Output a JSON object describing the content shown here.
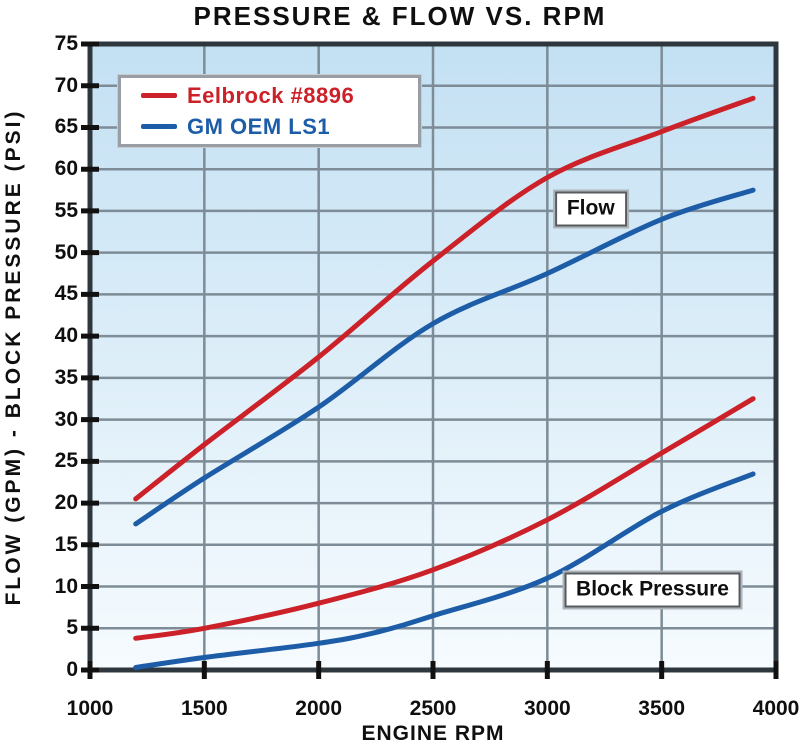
{
  "chart_data": {
    "type": "line",
    "title": "PRESSURE & FLOW VS. RPM",
    "xlabel": "ENGINE RPM",
    "ylabel": "FLOW (GPM) - BLOCK PRESSURE (PSI)",
    "xlim": [
      1000,
      4000
    ],
    "ylim": [
      0,
      75
    ],
    "x_ticks": [
      1000,
      1500,
      2000,
      2500,
      3000,
      3500,
      4000
    ],
    "y_ticks": [
      0,
      5,
      10,
      15,
      20,
      25,
      30,
      35,
      40,
      45,
      50,
      55,
      60,
      65,
      70,
      75
    ],
    "grid": true,
    "legend_position": "top-left",
    "colors": {
      "red_series": "#cc2128",
      "blue_series": "#1d5da8",
      "plot_bg_top": "#c3e0f3",
      "plot_bg_bottom": "#f6fbfe",
      "gridline": "#7d8c96",
      "border": "#2e373d",
      "tick_mark": "#111111"
    },
    "legend": [
      {
        "label": "Eelbrock #8896",
        "color": "#cc2128"
      },
      {
        "label": "GM OEM LS1",
        "color": "#1d5da8"
      }
    ],
    "annotations": [
      {
        "text": "Flow",
        "x": 3190,
        "y": 55.2
      },
      {
        "text": "Block Pressure",
        "x": 3460,
        "y": 9.6
      }
    ],
    "series": [
      {
        "name": "Eelbrock #8896 Flow (GPM)",
        "group": "Flow",
        "color": "#cc2128",
        "points": [
          [
            1200,
            20.5
          ],
          [
            1500,
            27
          ],
          [
            2000,
            37.5
          ],
          [
            2500,
            49
          ],
          [
            3000,
            59
          ],
          [
            3500,
            64.5
          ],
          [
            3900,
            68.5
          ]
        ]
      },
      {
        "name": "GM OEM LS1 Flow (GPM)",
        "group": "Flow",
        "color": "#1d5da8",
        "points": [
          [
            1200,
            17.5
          ],
          [
            1500,
            23
          ],
          [
            2000,
            31.5
          ],
          [
            2500,
            41.5
          ],
          [
            3000,
            47.5
          ],
          [
            3500,
            54
          ],
          [
            3900,
            57.5
          ]
        ]
      },
      {
        "name": "Eelbrock #8896 Block Pressure (PSI)",
        "group": "Block Pressure",
        "color": "#cc2128",
        "points": [
          [
            1200,
            3.8
          ],
          [
            1500,
            5
          ],
          [
            2000,
            8
          ],
          [
            2500,
            12
          ],
          [
            3000,
            18
          ],
          [
            3500,
            26
          ],
          [
            3900,
            32.5
          ]
        ]
      },
      {
        "name": "GM OEM LS1 Block Pressure (PSI)",
        "group": "Block Pressure",
        "color": "#1d5da8",
        "points": [
          [
            1200,
            0.3
          ],
          [
            1500,
            1.5
          ],
          [
            2000,
            3.2
          ],
          [
            2250,
            4.5
          ],
          [
            2500,
            6.5
          ],
          [
            3000,
            11
          ],
          [
            3500,
            19
          ],
          [
            3900,
            23.5
          ]
        ]
      }
    ]
  }
}
